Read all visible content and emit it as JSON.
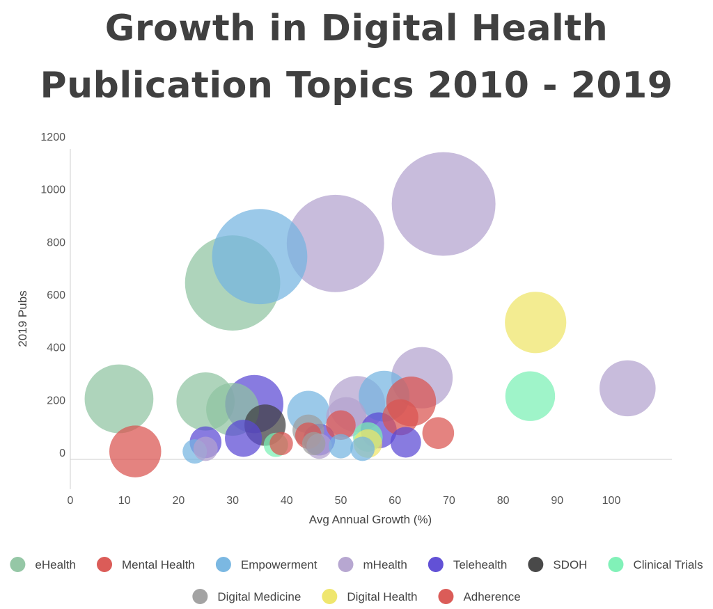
{
  "chart_data": {
    "type": "bubble",
    "title_lines": [
      "Growth in Digital Health",
      "Publication Topics 2010 - 2019"
    ],
    "xlabel": "Avg Annual Growth (%)",
    "ylabel": "2019 Pubs",
    "xlim": [
      0,
      110
    ],
    "ylim": [
      -100,
      1200
    ],
    "xticks": [
      0,
      10,
      20,
      30,
      40,
      50,
      60,
      70,
      80,
      90,
      100
    ],
    "yticks": [
      0,
      200,
      400,
      600,
      800,
      1000,
      1200
    ],
    "legend_position": "bottom",
    "series": [
      {
        "name": "eHealth",
        "color": "#8fc4a1",
        "points": [
          {
            "x": 30,
            "y": 670,
            "size": 9.0
          },
          {
            "x": 9,
            "y": 230,
            "size": 6.5
          },
          {
            "x": 25,
            "y": 220,
            "size": 5.5
          },
          {
            "x": 30,
            "y": 190,
            "size": 5.0
          }
        ]
      },
      {
        "name": "Mental Health",
        "color": "#d9534f",
        "points": [
          {
            "x": 12,
            "y": 30,
            "size": 4.9
          },
          {
            "x": 39,
            "y": 60,
            "size": 2.2
          },
          {
            "x": 44,
            "y": 90,
            "size": 2.5
          },
          {
            "x": 50,
            "y": 130,
            "size": 2.8
          }
        ]
      },
      {
        "name": "Empowerment",
        "color": "#74b4e0",
        "points": [
          {
            "x": 35,
            "y": 770,
            "size": 9.0
          },
          {
            "x": 58,
            "y": 240,
            "size": 4.8
          },
          {
            "x": 44,
            "y": 180,
            "size": 4.0
          },
          {
            "x": 23,
            "y": 30,
            "size": 2.3
          },
          {
            "x": 50,
            "y": 50,
            "size": 2.3
          },
          {
            "x": 54,
            "y": 40,
            "size": 2.3
          }
        ]
      },
      {
        "name": "mHealth",
        "color": "#b3a2cf",
        "points": [
          {
            "x": 69,
            "y": 970,
            "size": 9.8
          },
          {
            "x": 49,
            "y": 820,
            "size": 9.2
          },
          {
            "x": 65,
            "y": 310,
            "size": 5.8
          },
          {
            "x": 103,
            "y": 270,
            "size": 5.3
          },
          {
            "x": 53,
            "y": 210,
            "size": 5.3
          },
          {
            "x": 51,
            "y": 160,
            "size": 3.8
          },
          {
            "x": 46,
            "y": 50,
            "size": 2.4
          },
          {
            "x": 25,
            "y": 40,
            "size": 2.3
          }
        ]
      },
      {
        "name": "Telehealth",
        "color": "#5a48d4",
        "points": [
          {
            "x": 34,
            "y": 210,
            "size": 5.5
          },
          {
            "x": 57,
            "y": 110,
            "size": 3.4
          },
          {
            "x": 32,
            "y": 80,
            "size": 3.5
          },
          {
            "x": 46,
            "y": 75,
            "size": 3.0
          },
          {
            "x": 62,
            "y": 65,
            "size": 2.9
          },
          {
            "x": 25,
            "y": 65,
            "size": 3.0
          }
        ]
      },
      {
        "name": "SDOH",
        "color": "#3f3f3f",
        "points": [
          {
            "x": 36,
            "y": 130,
            "size": 3.9
          }
        ]
      },
      {
        "name": "Clinical Trials",
        "color": "#7af0b4",
        "points": [
          {
            "x": 85,
            "y": 240,
            "size": 4.7
          },
          {
            "x": 55,
            "y": 85,
            "size": 2.8
          },
          {
            "x": 38,
            "y": 55,
            "size": 2.3
          }
        ]
      },
      {
        "name": "Digital Medicine",
        "color": "#9e9e9e",
        "points": [
          {
            "x": 44,
            "y": 110,
            "size": 3.0
          },
          {
            "x": 45,
            "y": 60,
            "size": 2.2
          }
        ]
      },
      {
        "name": "Digital Health",
        "color": "#eee566",
        "points": [
          {
            "x": 86,
            "y": 520,
            "size": 5.8
          },
          {
            "x": 55,
            "y": 60,
            "size": 2.7
          }
        ]
      },
      {
        "name": "Adherence",
        "color": "#d9534f",
        "points": [
          {
            "x": 63,
            "y": 220,
            "size": 4.7
          },
          {
            "x": 68,
            "y": 100,
            "size": 3.0
          },
          {
            "x": 61,
            "y": 160,
            "size": 3.4
          }
        ]
      }
    ]
  }
}
